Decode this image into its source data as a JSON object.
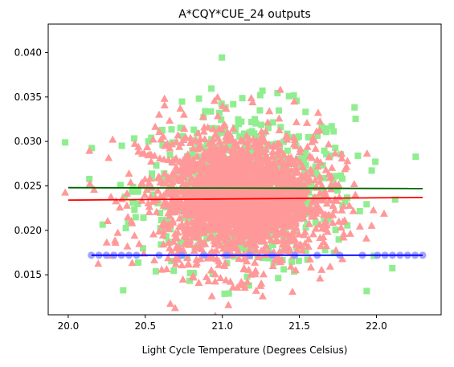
{
  "chart_data": {
    "type": "scatter",
    "title": "A*CQY*CUE_24 outputs",
    "xlabel": "Light Cycle Temperature (Degrees Celsius)",
    "ylabel": "",
    "xlim": [
      19.87,
      22.42
    ],
    "ylim": [
      0.0105,
      0.0432
    ],
    "x_ticks": [
      "20.0",
      "20.5",
      "21.0",
      "21.5",
      "22.0"
    ],
    "x_tick_values": [
      20.0,
      20.5,
      21.0,
      21.5,
      22.0
    ],
    "y_ticks": [
      "0.015",
      "0.020",
      "0.025",
      "0.030",
      "0.035",
      "0.040"
    ],
    "y_tick_values": [
      0.015,
      0.02,
      0.025,
      0.03,
      0.035,
      0.04
    ],
    "grid": false,
    "legend": "none",
    "series": [
      {
        "marker": "square",
        "color": "#90ee90",
        "points_estimated_count": 600,
        "x_center": 21.15,
        "x_spread": 0.35,
        "y_center": 0.0247,
        "y_spread": 0.0045,
        "fit_line": {
          "color": "#006400",
          "x": [
            20.0,
            22.3
          ],
          "y": [
            0.0248,
            0.0247
          ]
        }
      },
      {
        "marker": "triangle",
        "color": "#ff9999",
        "points_estimated_count": 900,
        "x_center": 21.1,
        "x_spread": 0.32,
        "y_center": 0.0236,
        "y_spread": 0.0042,
        "fit_line": {
          "color": "#ff0000",
          "x": [
            20.0,
            22.3
          ],
          "y": [
            0.0234,
            0.0237
          ]
        }
      },
      {
        "marker": "circle",
        "color": "#9999ff",
        "constant_y": 0.0172,
        "x_range": [
          20.15,
          22.3
        ],
        "fit_line": {
          "color": "#0000ff",
          "x": [
            20.15,
            22.3
          ],
          "y": [
            0.0172,
            0.0172
          ]
        }
      }
    ]
  }
}
